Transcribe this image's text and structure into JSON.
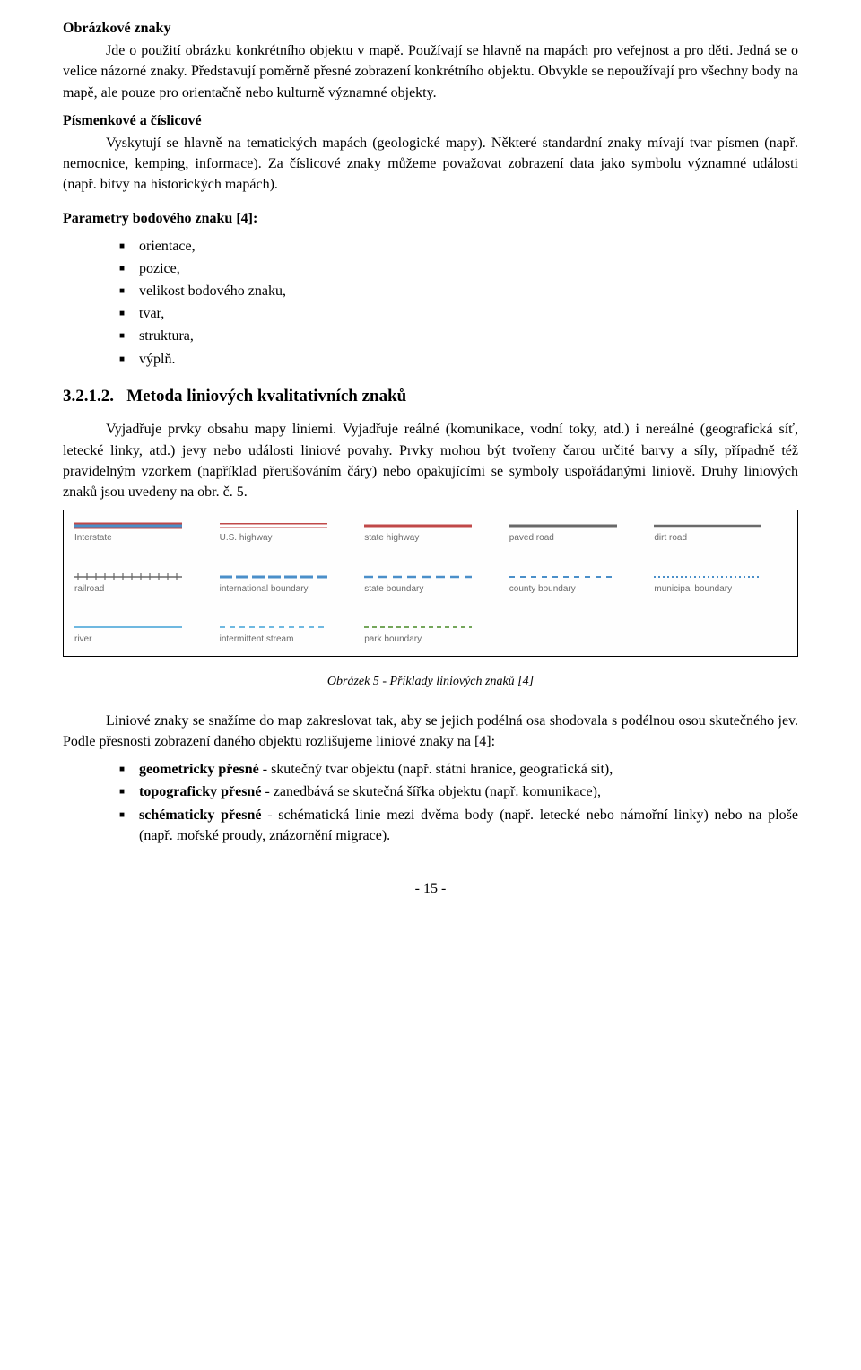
{
  "heading1": "Obrázkové znaky",
  "para1": "Jde o použití obrázku konkrétního objektu v mapě. Používají se hlavně na mapách pro veřejnost a pro děti. Jedná se o velice názorné znaky. Představují poměrně přesné zobrazení konkrétního objektu. Obvykle se nepoužívají pro všechny body na mapě, ale pouze pro orientačně nebo kulturně významné objekty.",
  "heading2": "Písmenkové a číslicové",
  "para2": "Vyskytují se hlavně na tematických mapách (geologické mapy). Některé standardní znaky mívají tvar písmen (např. nemocnice, kemping, informace). Za číslicové znaky můžeme považovat zobrazení data jako symbolu významné události (např. bitvy na historických mapách).",
  "paramsTitle": "Parametry bodového znaku [4]:",
  "params": [
    "orientace,",
    "pozice,",
    "velikost bodového znaku,",
    "tvar,",
    "struktura,",
    "výplň."
  ],
  "sectionNum": "3.2.1.2.",
  "sectionTitle": "Metoda liniových kvalitativních znaků",
  "para3": "Vyjadřuje prvky obsahu mapy liniemi. Vyjadřuje reálné (komunikace, vodní toky, atd.) i nereálné (geografická síť, letecké linky, atd.) jevy nebo události liniové povahy. Prvky mohou být tvořeny čarou určité barvy a síly, případně též pravidelným vzorkem (například přerušováním čáry) nebo opakujícími se symboly uspořádanými liniově. Druhy liniových znaků jsou uvedeny na obr. č. 5.",
  "legend": {
    "rows": [
      [
        {
          "label": "Interstate",
          "type": "triple",
          "colors": [
            "#c04848",
            "#4a8fc9",
            "#c04848"
          ],
          "widths": [
            2,
            3,
            2
          ]
        },
        {
          "label": "U.S. highway",
          "type": "triple",
          "colors": [
            "#c04848",
            "#ffffff",
            "#c04848"
          ],
          "widths": [
            1.5,
            3,
            1.5
          ],
          "bg": "#fafafa"
        },
        {
          "label": "state highway",
          "type": "single",
          "colors": [
            "#c04848"
          ],
          "widths": [
            3
          ]
        },
        {
          "label": "paved road",
          "type": "single",
          "colors": [
            "#686868"
          ],
          "widths": [
            3
          ]
        },
        {
          "label": "dirt road",
          "type": "single",
          "colors": [
            "#6a6a6a"
          ],
          "widths": [
            2.5
          ]
        }
      ],
      [
        {
          "label": "railroad",
          "type": "rail",
          "color": "#686868"
        },
        {
          "label": "international boundary",
          "type": "dash",
          "color": "#4a8fc9",
          "dash": "14 4",
          "width": 3
        },
        {
          "label": "state boundary",
          "type": "dash",
          "color": "#4a8fc9",
          "dash": "10 6",
          "width": 2.5
        },
        {
          "label": "county boundary",
          "type": "dash",
          "color": "#4a8fc9",
          "dash": "6 6",
          "width": 2
        },
        {
          "label": "municipal boundary",
          "type": "dash",
          "color": "#4a8fc9",
          "dash": "2 3",
          "width": 2
        }
      ],
      [
        {
          "label": "river",
          "type": "single",
          "colors": [
            "#6fb8e0"
          ],
          "widths": [
            2
          ]
        },
        {
          "label": "intermittent stream",
          "type": "dash",
          "color": "#6fb8e0",
          "dash": "6 5",
          "width": 2
        },
        {
          "label": "park boundary",
          "type": "dash",
          "color": "#74a65a",
          "dash": "5 4",
          "width": 2
        },
        {
          "type": "empty"
        },
        {
          "type": "empty"
        }
      ]
    ]
  },
  "caption": "Obrázek 5 - Příklady liniových znaků [4]",
  "para4": "Liniové znaky se snažíme do map zakreslovat tak, aby se jejich podélná osa shodovala s podélnou osou skutečného jev. Podle přesnosti zobrazení daného objektu rozlišujeme liniové znaky na [4]:",
  "accuracyList": [
    {
      "b": "geometricky přesné",
      "t": " - skutečný tvar objektu (např. státní hranice, geografická sít),"
    },
    {
      "b": "topograficky přesné",
      "t": " - zanedbává se skutečná šířka objektu (např. komunikace),"
    },
    {
      "b": "schématicky přesné",
      "t": " - schématická linie mezi dvěma body (např. letecké nebo námořní linky) nebo na ploše (např. mořské proudy, znázornění migrace)."
    }
  ],
  "pageNum": "- 15 -"
}
